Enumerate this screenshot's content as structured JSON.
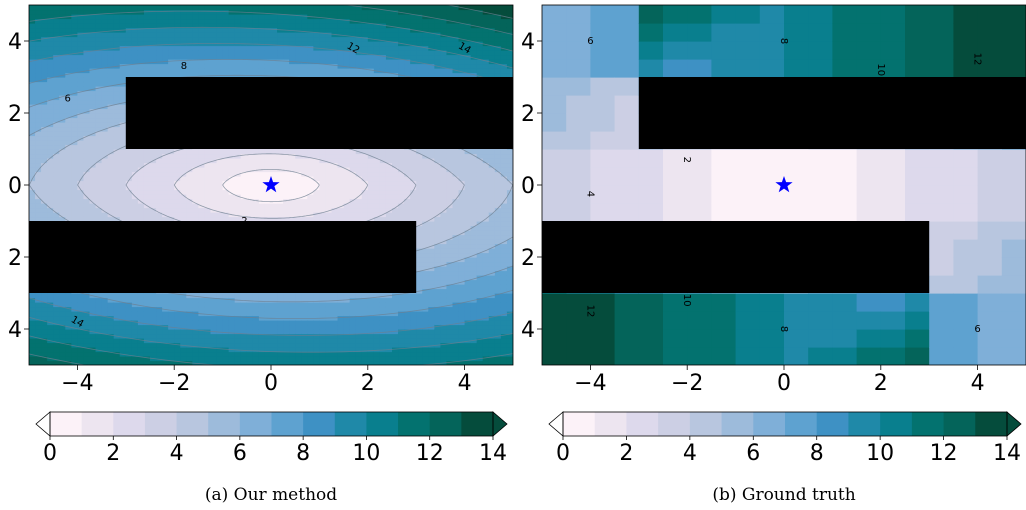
{
  "figure": {
    "colors": [
      "#fcf2f8",
      "#ede5f0",
      "#ddd9ec",
      "#cccfe4",
      "#b8c6df",
      "#9dbbdb",
      "#7fafd8",
      "#5ea2d0",
      "#3e91c4",
      "#1f89a8",
      "#097f8e",
      "#03726f",
      "#04645a",
      "#054c3c"
    ],
    "obstacle_color": "#000000",
    "goal_color": "#0000ff",
    "colorbar": {
      "levels": [
        0,
        1,
        2,
        3,
        4,
        5,
        6,
        7,
        8,
        9,
        10,
        11,
        12,
        13,
        14
      ],
      "ticks": [
        "0",
        "2",
        "4",
        "6",
        "8",
        "10",
        "12",
        "14"
      ],
      "extend": "both"
    }
  },
  "chart_data": [
    {
      "type": "heatmap",
      "subtitle": "(a) Our method",
      "title": "",
      "xlabel": "",
      "ylabel": "",
      "xlim": [
        -5,
        5
      ],
      "ylim": [
        -5,
        5
      ],
      "xticks": [
        "−4",
        "−2",
        "0",
        "2",
        "4"
      ],
      "yticks": [
        "4",
        "2",
        "0",
        "2",
        "4"
      ],
      "value_ticks": [
        4,
        2,
        0,
        -2,
        -4
      ],
      "goal": [
        0,
        0
      ],
      "obstacles": [
        [
          -3,
          1,
          5,
          3
        ],
        [
          -5,
          -3,
          3,
          -1
        ]
      ],
      "contour_labels": [
        {
          "text": "12",
          "x": 1.7,
          "y": 3.8,
          "rot": 30
        },
        {
          "text": "14",
          "x": 4.0,
          "y": 3.8,
          "rot": 30
        },
        {
          "text": "8",
          "x": -1.8,
          "y": 3.3,
          "rot": 0
        },
        {
          "text": "6",
          "x": -4.2,
          "y": 2.4,
          "rot": 0
        },
        {
          "text": "2",
          "x": -0.55,
          "y": -1.0,
          "rot": 0
        },
        {
          "text": "14",
          "x": -4.0,
          "y": -3.8,
          "rot": 30
        }
      ]
    },
    {
      "type": "heatmap",
      "subtitle": "(b) Ground truth",
      "title": "",
      "xlabel": "",
      "ylabel": "",
      "xlim": [
        -5,
        5
      ],
      "ylim": [
        -5,
        5
      ],
      "xticks": [
        "−4",
        "−2",
        "0",
        "2",
        "4"
      ],
      "yticks": [
        "4",
        "2",
        "0",
        "2",
        "4"
      ],
      "value_ticks": [
        4,
        2,
        0,
        -2,
        -4
      ],
      "goal": [
        0,
        0
      ],
      "obstacles": [
        [
          -3,
          1,
          5,
          3
        ],
        [
          -5,
          -3,
          3,
          -1
        ]
      ],
      "contour_labels": [
        {
          "text": "6",
          "x": -4.0,
          "y": 4.0,
          "rot": 0
        },
        {
          "text": "8",
          "x": 0.0,
          "y": 4.0,
          "rot": 90
        },
        {
          "text": "10",
          "x": 2.0,
          "y": 3.2,
          "rot": 90
        },
        {
          "text": "12",
          "x": 4.0,
          "y": 3.5,
          "rot": 90
        },
        {
          "text": "2",
          "x": -2.0,
          "y": 0.7,
          "rot": 90
        },
        {
          "text": "4",
          "x": -4.0,
          "y": -0.25,
          "rot": 90
        },
        {
          "text": "12",
          "x": -4.0,
          "y": -3.5,
          "rot": 90
        },
        {
          "text": "10",
          "x": -2.0,
          "y": -3.2,
          "rot": 90
        },
        {
          "text": "8",
          "x": 0.0,
          "y": -4.0,
          "rot": 90
        },
        {
          "text": "6",
          "x": 4.0,
          "y": -4.0,
          "rot": 0
        }
      ]
    }
  ]
}
